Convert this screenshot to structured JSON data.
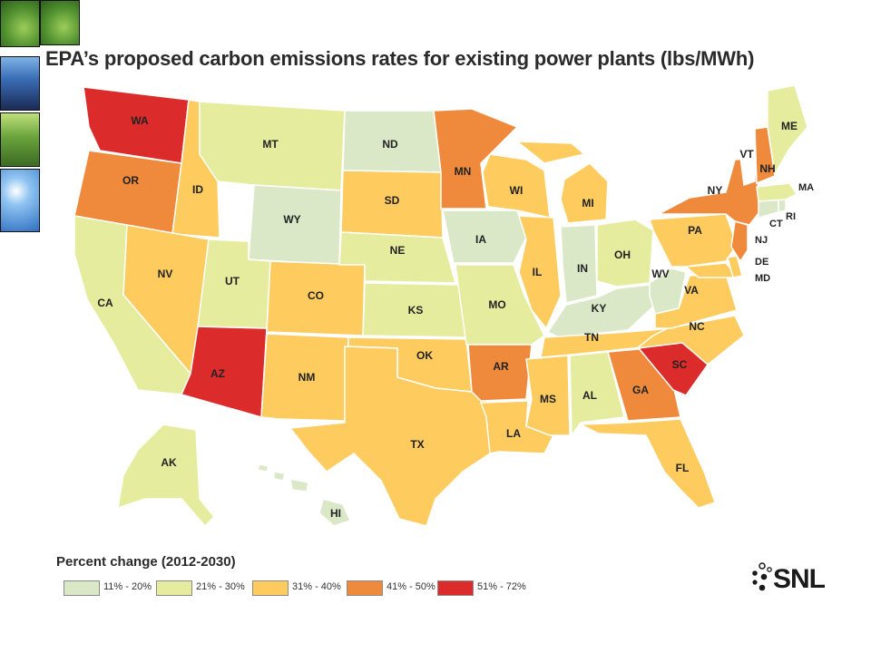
{
  "title": "EPA’s proposed carbon emissions rates for existing power plants (lbs/MWh)",
  "legend": {
    "title": "Percent change (2012-2030)",
    "items": [
      {
        "label": "11% - 20%",
        "color": "#dbe8c8"
      },
      {
        "label": "21% - 30%",
        "color": "#e6ec9e"
      },
      {
        "label": "31% - 40%",
        "color": "#fdcb5e"
      },
      {
        "label": "41% - 50%",
        "color": "#ef8a3c"
      },
      {
        "label": "51% - 72%",
        "color": "#dc2b2b"
      }
    ]
  },
  "logo": "SNL",
  "thumbnails": [
    "leaf-photo",
    "solar-panel-photo",
    "forest-photo",
    "sky-photo"
  ],
  "states": {
    "WA": {
      "label": "WA",
      "bin": 4
    },
    "OR": {
      "label": "OR",
      "bin": 3
    },
    "CA": {
      "label": "CA",
      "bin": 1
    },
    "ID": {
      "label": "ID",
      "bin": 2
    },
    "NV": {
      "label": "NV",
      "bin": 2
    },
    "MT": {
      "label": "MT",
      "bin": 1
    },
    "WY": {
      "label": "WY",
      "bin": 0
    },
    "UT": {
      "label": "UT",
      "bin": 1
    },
    "AZ": {
      "label": "AZ",
      "bin": 4
    },
    "CO": {
      "label": "CO",
      "bin": 2
    },
    "NM": {
      "label": "NM",
      "bin": 2
    },
    "ND": {
      "label": "ND",
      "bin": 0
    },
    "SD": {
      "label": "SD",
      "bin": 2
    },
    "NE": {
      "label": "NE",
      "bin": 1
    },
    "KS": {
      "label": "KS",
      "bin": 1
    },
    "OK": {
      "label": "OK",
      "bin": 2
    },
    "TX": {
      "label": "TX",
      "bin": 2
    },
    "MN": {
      "label": "MN",
      "bin": 3
    },
    "IA": {
      "label": "IA",
      "bin": 0
    },
    "MO": {
      "label": "MO",
      "bin": 1
    },
    "AR": {
      "label": "AR",
      "bin": 3
    },
    "LA": {
      "label": "LA",
      "bin": 2
    },
    "WI": {
      "label": "WI",
      "bin": 2
    },
    "IL": {
      "label": "IL",
      "bin": 2
    },
    "MI": {
      "label": "MI",
      "bin": 2
    },
    "IN": {
      "label": "IN",
      "bin": 0
    },
    "OH": {
      "label": "OH",
      "bin": 1
    },
    "KY": {
      "label": "KY",
      "bin": 0
    },
    "TN": {
      "label": "TN",
      "bin": 2
    },
    "MS": {
      "label": "MS",
      "bin": 2
    },
    "AL": {
      "label": "AL",
      "bin": 1
    },
    "GA": {
      "label": "GA",
      "bin": 3
    },
    "FL": {
      "label": "FL",
      "bin": 2
    },
    "SC": {
      "label": "SC",
      "bin": 4
    },
    "NC": {
      "label": "NC",
      "bin": 2
    },
    "VA": {
      "label": "VA",
      "bin": 2
    },
    "WV": {
      "label": "WV",
      "bin": 0
    },
    "PA": {
      "label": "PA",
      "bin": 2
    },
    "NY": {
      "label": "NY",
      "bin": 3
    },
    "NJ": {
      "label": "NJ",
      "bin": 3
    },
    "DE": {
      "label": "DE",
      "bin": 2
    },
    "MD": {
      "label": "MD",
      "bin": 2
    },
    "CT": {
      "label": "CT",
      "bin": 0
    },
    "RI": {
      "label": "RI",
      "bin": 0
    },
    "MA": {
      "label": "MA",
      "bin": 1
    },
    "VT": {
      "label": "VT",
      "bin": -1
    },
    "NH": {
      "label": "NH",
      "bin": 3
    },
    "ME": {
      "label": "ME",
      "bin": 1
    },
    "AK": {
      "label": "AK",
      "bin": 1
    },
    "HI": {
      "label": "HI",
      "bin": 0
    }
  }
}
